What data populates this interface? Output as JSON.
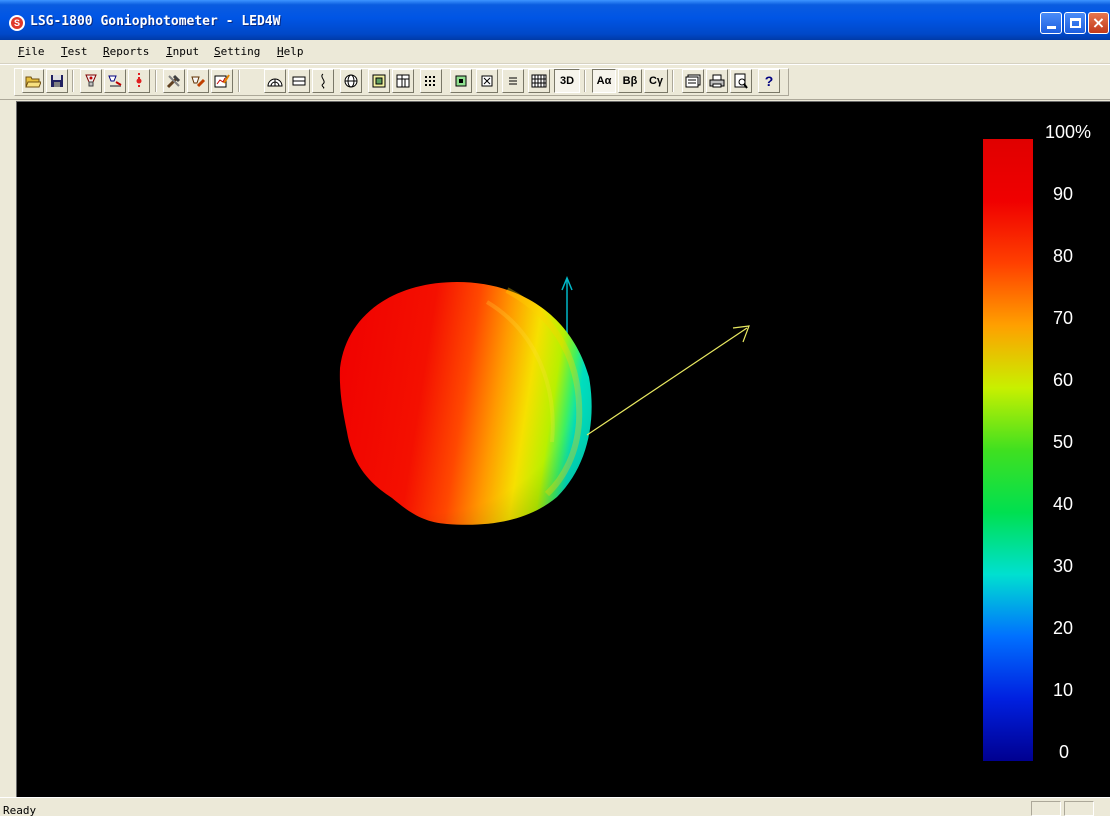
{
  "window": {
    "title": "LSG-1800 Goniophotometer - LED4W",
    "app_icon_letter": "S"
  },
  "menu": {
    "items": [
      {
        "accel": "F",
        "rest": "ile"
      },
      {
        "accel": "T",
        "rest": "est"
      },
      {
        "accel": "R",
        "rest": "eports"
      },
      {
        "accel": "I",
        "rest": "nput"
      },
      {
        "accel": "S",
        "rest": "etting"
      },
      {
        "accel": "H",
        "rest": "elp"
      }
    ]
  },
  "toolbar": {
    "text_buttons": {
      "view_3d": "3D",
      "alpha": "Aα",
      "beta": "Bβ",
      "gamma": "Cγ",
      "help": "?"
    },
    "icons": [
      "open-file-icon",
      "save-icon",
      "lamp-icon",
      "lamp-measure-icon",
      "red-marker-icon",
      "tools-icon",
      "edit-lamp-icon",
      "chart-pen-icon",
      "polar-plot-icon",
      "line-plot-icon",
      "curve-icon",
      "sphere-icon",
      "isolux-icon",
      "grid-icon",
      "table-icon",
      "small-box-icon",
      "x-box-icon",
      "lines-icon",
      "matrix-icon",
      "3d-view-icon",
      "a-alpha-icon",
      "b-beta-icon",
      "c-gamma-icon",
      "report-icon",
      "print-icon",
      "print-preview-icon",
      "help-icon"
    ]
  },
  "view": {
    "background": "#000000",
    "legend": {
      "labels": [
        "100%",
        "90",
        "80",
        "70",
        "60",
        "50",
        "40",
        "30",
        "20",
        "10",
        "0"
      ]
    },
    "axis_colors": {
      "vertical": "#00b8c8",
      "horizontal": "#e8e860"
    }
  },
  "status": {
    "text": "Ready"
  }
}
